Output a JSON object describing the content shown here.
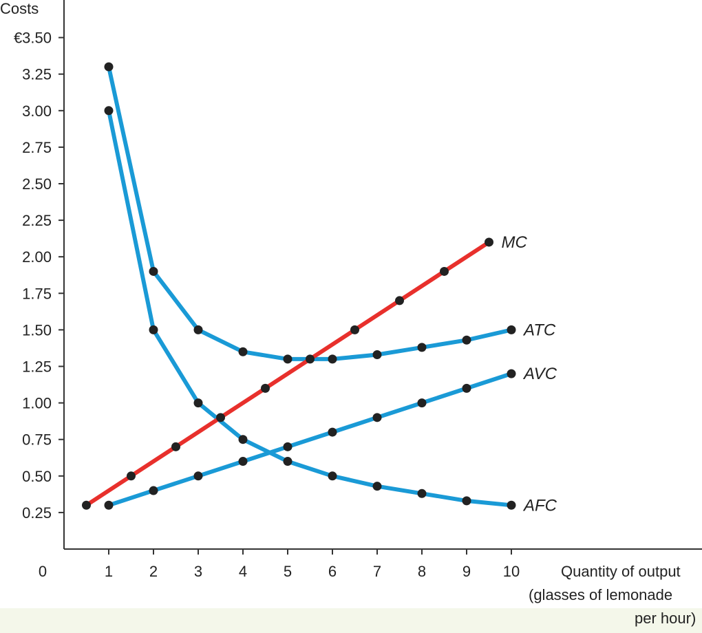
{
  "colors": {
    "blue": "#1a9ad6",
    "red": "#e8302c",
    "marker": "#222222",
    "axis": "#333333",
    "band": "#f4f7ea"
  },
  "chart_data": {
    "type": "line",
    "title": "",
    "ylabel": "Costs",
    "xlabel_lines": [
      "Quantity of output",
      "(glasses of lemonade",
      "per hour)"
    ],
    "origin_label": "0",
    "xlim": [
      0,
      10.8
    ],
    "ylim": [
      0,
      3.625
    ],
    "x_ticks": [
      1,
      2,
      3,
      4,
      5,
      6,
      7,
      8,
      9,
      10
    ],
    "x_tick_labels": [
      "1",
      "2",
      "3",
      "4",
      "5",
      "6",
      "7",
      "8",
      "9",
      "10"
    ],
    "y_ticks": [
      0.25,
      0.5,
      0.75,
      1.0,
      1.25,
      1.5,
      1.75,
      2.0,
      2.25,
      2.5,
      2.75,
      3.0,
      3.25,
      3.5
    ],
    "y_tick_labels": [
      "0.25",
      "0.50",
      "0.75",
      "1.00",
      "1.25",
      "1.50",
      "1.75",
      "2.00",
      "2.25",
      "2.50",
      "2.75",
      "3.00",
      "3.25",
      "€3.50"
    ],
    "grid": false,
    "legend": "inline labels at line ends",
    "series": [
      {
        "name": "MC",
        "color": "#e8302c",
        "x": [
          0.5,
          1.5,
          2.5,
          3.5,
          4.5,
          5.5,
          6.5,
          7.5,
          8.5,
          9.5
        ],
        "y": [
          0.3,
          0.5,
          0.7,
          0.9,
          1.1,
          1.3,
          1.5,
          1.7,
          1.9,
          2.1
        ]
      },
      {
        "name": "ATC",
        "color": "#1a9ad6",
        "x": [
          1,
          2,
          3,
          4,
          5,
          6,
          7,
          8,
          9,
          10
        ],
        "y": [
          3.3,
          1.9,
          1.5,
          1.35,
          1.3,
          1.3,
          1.33,
          1.38,
          1.43,
          1.5
        ]
      },
      {
        "name": "AVC",
        "color": "#1a9ad6",
        "x": [
          1,
          2,
          3,
          4,
          5,
          6,
          7,
          8,
          9,
          10
        ],
        "y": [
          0.3,
          0.4,
          0.5,
          0.6,
          0.7,
          0.8,
          0.9,
          1.0,
          1.1,
          1.2
        ]
      },
      {
        "name": "AFC",
        "color": "#1a9ad6",
        "x": [
          1,
          2,
          3,
          4,
          5,
          6,
          7,
          8,
          9,
          10
        ],
        "y": [
          3.0,
          1.5,
          1.0,
          0.75,
          0.6,
          0.5,
          0.43,
          0.38,
          0.33,
          0.3
        ]
      }
    ]
  }
}
